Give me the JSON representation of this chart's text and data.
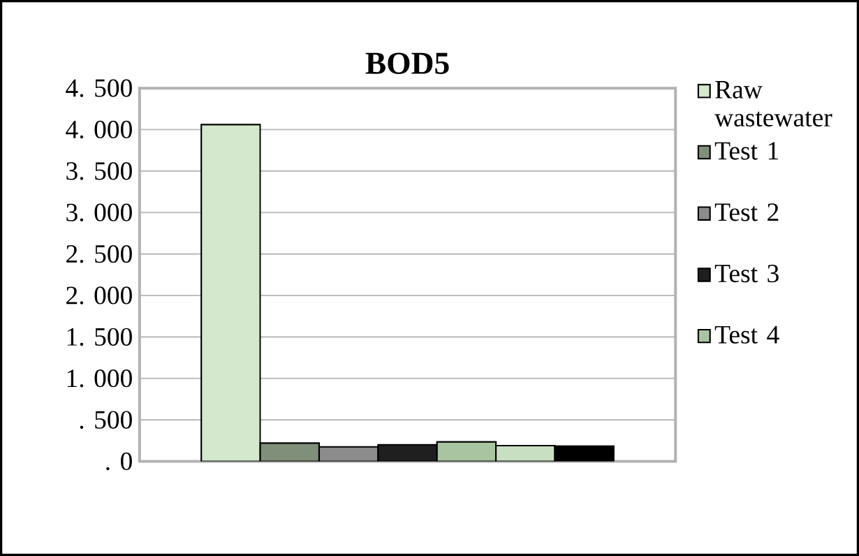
{
  "chart_data": {
    "type": "bar",
    "title": "BOD5",
    "categories": [
      null
    ],
    "series": [
      {
        "name": "Raw wastewater",
        "color": "#d3e8cc",
        "values": [
          4060
        ]
      },
      {
        "name": "Test 1",
        "color": "#7f8f7a",
        "values": [
          220
        ]
      },
      {
        "name": "Test 2",
        "color": "#8c8c8c",
        "values": [
          175
        ]
      },
      {
        "name": "Test 3",
        "color": "#1f1f1f",
        "values": [
          200
        ]
      },
      {
        "name": "Test 4",
        "color": "#a9c4a1",
        "values": [
          235
        ]
      },
      {
        "color": "#c9dfc2",
        "values": [
          190
        ]
      },
      {
        "color": "#000000",
        "values": [
          185
        ]
      }
    ],
    "ylim": [
      0,
      4500
    ],
    "yticks": [
      {
        "value": 0,
        "label": ". 0"
      },
      {
        "value": 500,
        "label": ". 500"
      },
      {
        "value": 1000,
        "label": "1. 000"
      },
      {
        "value": 1500,
        "label": "1. 500"
      },
      {
        "value": 2000,
        "label": "2. 000"
      },
      {
        "value": 2500,
        "label": "2. 500"
      },
      {
        "value": 3000,
        "label": "3. 000"
      },
      {
        "value": 3500,
        "label": "3. 500"
      },
      {
        "value": 4000,
        "label": "4. 000"
      },
      {
        "value": 4500,
        "label": "4. 500"
      }
    ],
    "grid": "y",
    "legend": "right",
    "tick_labels": "y"
  }
}
